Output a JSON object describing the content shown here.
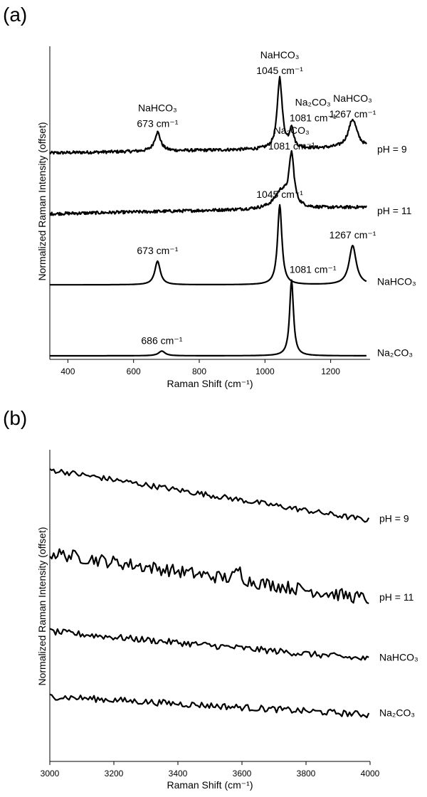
{
  "chart_data": [
    {
      "type": "line",
      "panel_label": "(a)",
      "xlabel": "Raman Shift (cm⁻¹)",
      "ylabel": "Normalized Raman Intensity (offset)",
      "xlim": [
        345,
        1320
      ],
      "xticks": [
        400,
        600,
        800,
        1000,
        1200
      ],
      "series": [
        {
          "name": "pH = 9",
          "offset": 3.0,
          "noise": 0.045,
          "baseline": [
            0.0,
            0.08
          ],
          "peaks": [
            {
              "x": 673,
              "h": 0.28,
              "w": 11
            },
            {
              "x": 1045,
              "h": 1.05,
              "w": 9
            },
            {
              "x": 1081,
              "h": 0.3,
              "w": 7
            },
            {
              "x": 1267,
              "h": 0.42,
              "w": 16
            }
          ]
        },
        {
          "name": "pH = 11",
          "offset": 2.1,
          "noise": 0.045,
          "baseline": [
            0.0,
            0.1
          ],
          "peaks": [
            {
              "x": 1050,
              "h": 0.25,
              "w": 25
            },
            {
              "x": 1081,
              "h": 0.75,
              "w": 9
            }
          ]
        },
        {
          "name": "NaHCO3",
          "offset": 1.05,
          "noise": 0.0,
          "baseline": [
            0.0,
            0.0
          ],
          "peaks": [
            {
              "x": 673,
              "h": 0.35,
              "w": 10
            },
            {
              "x": 1045,
              "h": 1.18,
              "w": 8
            },
            {
              "x": 1267,
              "h": 0.58,
              "w": 13
            }
          ]
        },
        {
          "name": "Na2CO3",
          "offset": 0.0,
          "noise": 0.0,
          "baseline": [
            0.0,
            0.0
          ],
          "peaks": [
            {
              "x": 686,
              "h": 0.07,
              "w": 12
            },
            {
              "x": 1081,
              "h": 1.12,
              "w": 7
            }
          ]
        }
      ],
      "annotations": [
        {
          "lines": [
            "NaHCO₃",
            "673 cm⁻¹"
          ],
          "x": 673,
          "series": 0
        },
        {
          "lines": [
            "NaHCO₃",
            "1045 cm⁻¹"
          ],
          "x": 1045,
          "series": 0
        },
        {
          "lines": [
            "Na₂CO₃",
            "1081 cm⁻¹"
          ],
          "x": 1081,
          "series": 0
        },
        {
          "lines": [
            "NaHCO₃",
            "1267 cm⁻¹"
          ],
          "x": 1267,
          "series": 0
        },
        {
          "lines": [
            "Na₂CO₃",
            "1081 cm⁻¹"
          ],
          "x": 1081,
          "series": 1
        },
        {
          "lines": [
            "673 cm⁻¹"
          ],
          "x": 673,
          "series": 2
        },
        {
          "lines": [
            "1045 cm⁻¹"
          ],
          "x": 1045,
          "series": 2
        },
        {
          "lines": [
            "1267 cm⁻¹"
          ],
          "x": 1267,
          "series": 2
        },
        {
          "lines": [
            "1081 cm⁻¹"
          ],
          "x": 1081,
          "series": 3
        },
        {
          "lines": [
            "686 cm⁻¹"
          ],
          "x": 686,
          "series": 3
        }
      ],
      "series_labels": [
        "pH = 9",
        "pH = 11",
        "NaHCO₃",
        "Na₂CO₃"
      ]
    },
    {
      "type": "line",
      "panel_label": "(b)",
      "xlabel": "Raman Shift (cm⁻¹)",
      "ylabel": "Normalized Raman Intensity (offset)",
      "xlim": [
        3000,
        4000
      ],
      "xticks": [
        3000,
        3200,
        3400,
        3600,
        3800,
        4000
      ],
      "series": [
        {
          "name": "pH = 9",
          "start": 3.0,
          "end": 2.45,
          "noise": 0.03,
          "extra_peaks": []
        },
        {
          "name": "pH = 11",
          "start": 2.1,
          "end": 1.6,
          "noise": 0.07,
          "extra_peaks": [
            {
              "x": 3590,
              "h": 0.12,
              "w": 10
            }
          ]
        },
        {
          "name": "NaHCO3",
          "start": 1.25,
          "end": 0.95,
          "noise": 0.035,
          "extra_peaks": []
        },
        {
          "name": "Na2CO3",
          "start": 0.55,
          "end": 0.35,
          "noise": 0.035,
          "extra_peaks": []
        }
      ],
      "series_labels": [
        "pH = 9",
        "pH = 11",
        "NaHCO₃",
        "Na₂CO₃"
      ]
    }
  ]
}
